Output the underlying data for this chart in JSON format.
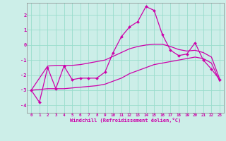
{
  "xlabel": "Windchill (Refroidissement éolien,°C)",
  "background_color": "#cceee8",
  "grid_color": "#99ddcc",
  "line_color": "#cc00aa",
  "spine_color": "#888888",
  "ylim": [
    -4.5,
    2.8
  ],
  "xlim": [
    -0.5,
    23.5
  ],
  "yticks": [
    -4,
    -3,
    -2,
    -1,
    0,
    1,
    2
  ],
  "xticks": [
    0,
    1,
    2,
    3,
    4,
    5,
    6,
    7,
    8,
    9,
    10,
    11,
    12,
    13,
    14,
    15,
    16,
    17,
    18,
    19,
    20,
    21,
    22,
    23
  ],
  "main_x": [
    0,
    1,
    2,
    3,
    4,
    5,
    6,
    7,
    8,
    9,
    10,
    11,
    12,
    13,
    14,
    15,
    16,
    17,
    18,
    19,
    20,
    21,
    22,
    23
  ],
  "main_y": [
    -3.0,
    -3.8,
    -1.5,
    -2.9,
    -1.4,
    -2.3,
    -2.2,
    -2.2,
    -2.2,
    -1.8,
    -0.5,
    0.55,
    1.2,
    1.55,
    2.55,
    2.3,
    0.7,
    -0.35,
    -0.7,
    -0.6,
    0.15,
    -1.0,
    -1.6,
    -2.3
  ],
  "upper_x": [
    0,
    2,
    3,
    4,
    5,
    6,
    7,
    8,
    9,
    10,
    11,
    12,
    13,
    14,
    15,
    16,
    17,
    18,
    19,
    20,
    21,
    22,
    23
  ],
  "upper_y": [
    -3.0,
    -1.4,
    -1.35,
    -1.35,
    -1.35,
    -1.3,
    -1.2,
    -1.1,
    -1.0,
    -0.75,
    -0.5,
    -0.25,
    -0.1,
    0.0,
    0.05,
    0.05,
    -0.1,
    -0.3,
    -0.4,
    -0.35,
    -0.5,
    -0.8,
    -2.25
  ],
  "lower_x": [
    0,
    2,
    3,
    4,
    5,
    6,
    7,
    8,
    9,
    10,
    11,
    12,
    13,
    14,
    15,
    16,
    17,
    18,
    19,
    20,
    21,
    22,
    23
  ],
  "lower_y": [
    -3.0,
    -2.9,
    -2.9,
    -2.9,
    -2.85,
    -2.8,
    -2.75,
    -2.7,
    -2.6,
    -2.4,
    -2.2,
    -1.9,
    -1.7,
    -1.5,
    -1.3,
    -1.2,
    -1.1,
    -1.0,
    -0.9,
    -0.8,
    -0.9,
    -1.2,
    -2.4
  ]
}
